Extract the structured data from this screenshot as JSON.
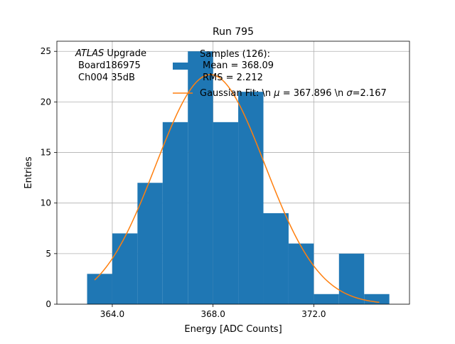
{
  "chart_data": {
    "type": "histogram",
    "title": "Run 795",
    "xlabel": "Energy [ADC Counts]",
    "ylabel": "Entries",
    "xlim": [
      361.8,
      375.8
    ],
    "ylim": [
      0,
      26
    ],
    "grid": true,
    "xticks": [
      364.0,
      368.0,
      372.0
    ],
    "xtick_labels": [
      "364.0",
      "368.0",
      "372.0"
    ],
    "yticks": [
      0,
      5,
      10,
      15,
      20,
      25
    ],
    "ytick_labels": [
      "0",
      "5",
      "10",
      "15",
      "20",
      "25"
    ],
    "bin_edges": [
      363.0,
      364.0,
      365.0,
      366.0,
      367.0,
      368.0,
      369.0,
      370.0,
      371.0,
      372.0,
      373.0,
      374.0,
      375.0
    ],
    "counts": [
      3,
      7,
      12,
      18,
      25,
      18,
      21,
      9,
      6,
      1,
      5,
      1
    ],
    "bar_color": "#1f77b4",
    "fit": {
      "name": "Gaussian Fit",
      "mu": 367.896,
      "sigma": 2.167,
      "amplitude": 22.7,
      "x_range": [
        363.3,
        374.6
      ],
      "color": "#ff7f0e"
    },
    "annotation": {
      "atlas": "ATLAS",
      "upgrade": " Upgrade",
      "line2": "Board186975",
      "line3": "Ch004 35dB"
    },
    "legend": {
      "placement": "top-right",
      "hist_line1": "Samples (126):",
      "hist_line2": "Mean = 368.09",
      "hist_line3": "RMS = 2.212",
      "fit_prefix": "Gaussian Fit: \\n ",
      "fit_mu": "μ",
      "fit_mid": " = 367.896 \\n ",
      "fit_sigma": "σ",
      "fit_suffix": "=2.167"
    }
  }
}
